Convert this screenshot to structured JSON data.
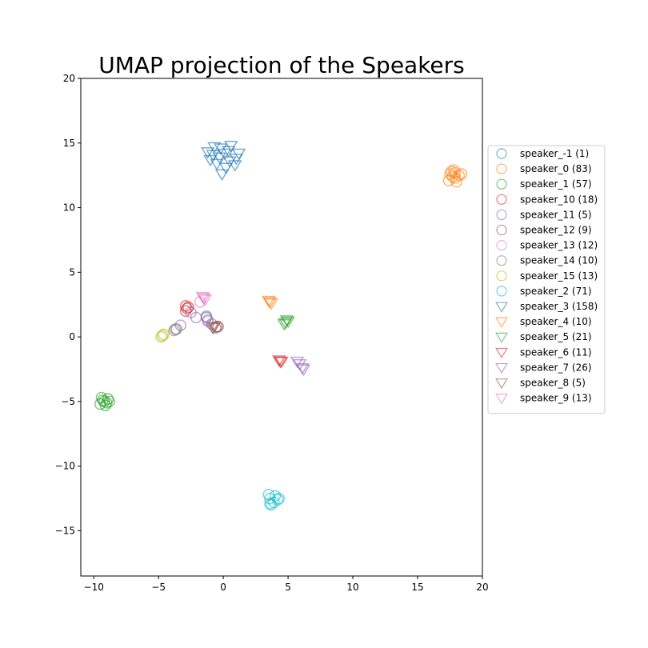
{
  "chart_data": {
    "type": "scatter",
    "title": "UMAP projection of the Speakers",
    "xlabel": "",
    "ylabel": "",
    "xlim": [
      -11,
      20
    ],
    "ylim": [
      -18.5,
      20
    ],
    "xticks": [
      -10,
      -5,
      0,
      5,
      10,
      15,
      20
    ],
    "yticks": [
      -15,
      -10,
      -5,
      0,
      5,
      10,
      15,
      20
    ],
    "grid": false,
    "legend_position": "right",
    "series": [
      {
        "name": "speaker_-1 (1)",
        "marker": "circle",
        "color": "#1f77b4",
        "points": [
          [
            -1.3,
            1.5
          ]
        ]
      },
      {
        "name": "speaker_0 (83)",
        "marker": "circle",
        "color": "#ff7f0e",
        "points": [
          [
            17.9,
            12.3
          ],
          [
            17.5,
            12.6
          ],
          [
            18.2,
            12.5
          ],
          [
            17.8,
            12.9
          ],
          [
            17.4,
            12.1
          ],
          [
            18.0,
            12.0
          ],
          [
            17.7,
            12.4
          ],
          [
            18.4,
            12.6
          ],
          [
            17.6,
            12.8
          ],
          [
            17.9,
            12.7
          ]
        ]
      },
      {
        "name": "speaker_1 (57)",
        "marker": "circle",
        "color": "#2ca02c",
        "points": [
          [
            -9.2,
            -5.0
          ],
          [
            -9.5,
            -5.2
          ],
          [
            -8.9,
            -4.8
          ],
          [
            -9.0,
            -5.1
          ],
          [
            -9.3,
            -4.9
          ],
          [
            -8.8,
            -5.0
          ],
          [
            -9.4,
            -4.7
          ],
          [
            -9.1,
            -5.3
          ]
        ]
      },
      {
        "name": "speaker_10 (18)",
        "marker": "circle",
        "color": "#d62728",
        "points": [
          [
            -2.9,
            2.4
          ],
          [
            -2.8,
            2.2
          ],
          [
            -2.9,
            2.0
          ],
          [
            -2.7,
            2.3
          ]
        ]
      },
      {
        "name": "speaker_11 (5)",
        "marker": "circle",
        "color": "#9467bd",
        "points": [
          [
            -3.3,
            0.9
          ],
          [
            -2.1,
            1.5
          ],
          [
            -2.5,
            1.9
          ],
          [
            -0.9,
            1.0
          ],
          [
            -1.2,
            1.3
          ]
        ]
      },
      {
        "name": "speaker_12 (9)",
        "marker": "circle",
        "color": "#8c564b",
        "points": [
          [
            -0.5,
            0.8
          ],
          [
            -0.4,
            0.8
          ],
          [
            -0.6,
            0.7
          ]
        ]
      },
      {
        "name": "speaker_13 (12)",
        "marker": "circle",
        "color": "#e377c2",
        "points": [
          [
            -1.8,
            2.7
          ],
          [
            -1.2,
            1.2
          ]
        ]
      },
      {
        "name": "speaker_14 (10)",
        "marker": "circle",
        "color": "#7f7f7f",
        "points": [
          [
            -3.7,
            0.6
          ],
          [
            -3.8,
            0.5
          ],
          [
            -3.6,
            0.6
          ],
          [
            -1.3,
            1.6
          ]
        ]
      },
      {
        "name": "speaker_15 (13)",
        "marker": "circle",
        "color": "#bcbd22",
        "points": [
          [
            -4.7,
            0.1
          ],
          [
            -4.6,
            0.2
          ],
          [
            -4.8,
            0.0
          ]
        ]
      },
      {
        "name": "speaker_2 (71)",
        "marker": "circle",
        "color": "#17becf",
        "points": [
          [
            3.6,
            -12.5
          ],
          [
            3.9,
            -12.8
          ],
          [
            3.5,
            -12.2
          ],
          [
            4.3,
            -12.5
          ],
          [
            3.7,
            -13.0
          ],
          [
            4.0,
            -12.3
          ],
          [
            3.6,
            -12.9
          ],
          [
            4.2,
            -12.6
          ]
        ]
      },
      {
        "name": "speaker_3 (158)",
        "marker": "triangle",
        "color": "#1f77b4",
        "points": [
          [
            -0.8,
            14.1
          ],
          [
            -0.2,
            14.6
          ],
          [
            0.4,
            14.4
          ],
          [
            1.0,
            13.8
          ],
          [
            -0.5,
            13.4
          ],
          [
            0.2,
            13.1
          ],
          [
            -1.2,
            14.3
          ],
          [
            0.6,
            14.8
          ],
          [
            1.2,
            14.2
          ],
          [
            -0.1,
            12.6
          ],
          [
            0.5,
            13.6
          ],
          [
            -0.7,
            14.7
          ],
          [
            0.9,
            13.3
          ],
          [
            -0.3,
            13.9
          ],
          [
            0.1,
            14.2
          ],
          [
            -1.0,
            13.7
          ]
        ]
      },
      {
        "name": "speaker_4 (10)",
        "marker": "triangle",
        "color": "#ff7f0e",
        "points": [
          [
            3.6,
            2.7
          ],
          [
            3.5,
            2.8
          ],
          [
            3.7,
            2.6
          ]
        ]
      },
      {
        "name": "speaker_5 (21)",
        "marker": "triangle",
        "color": "#2ca02c",
        "points": [
          [
            4.8,
            1.1
          ],
          [
            5.0,
            1.2
          ],
          [
            4.7,
            1.0
          ],
          [
            4.9,
            1.3
          ]
        ]
      },
      {
        "name": "speaker_6 (11)",
        "marker": "triangle",
        "color": "#d62728",
        "points": [
          [
            4.4,
            -1.9
          ],
          [
            4.3,
            -1.8
          ],
          [
            4.5,
            -1.9
          ]
        ]
      },
      {
        "name": "speaker_7 (26)",
        "marker": "triangle",
        "color": "#9467bd",
        "points": [
          [
            5.7,
            -1.9
          ],
          [
            5.9,
            -2.1
          ],
          [
            6.2,
            -2.5
          ],
          [
            6.1,
            -2.4
          ]
        ]
      },
      {
        "name": "speaker_8 (5)",
        "marker": "triangle",
        "color": "#8c564b",
        "points": [
          [
            -0.8,
            0.7
          ],
          [
            -0.7,
            0.8
          ]
        ]
      },
      {
        "name": "speaker_9 (13)",
        "marker": "triangle",
        "color": "#e377c2",
        "points": [
          [
            -1.5,
            3.0
          ],
          [
            -1.4,
            2.9
          ],
          [
            -1.6,
            3.1
          ]
        ]
      }
    ]
  }
}
